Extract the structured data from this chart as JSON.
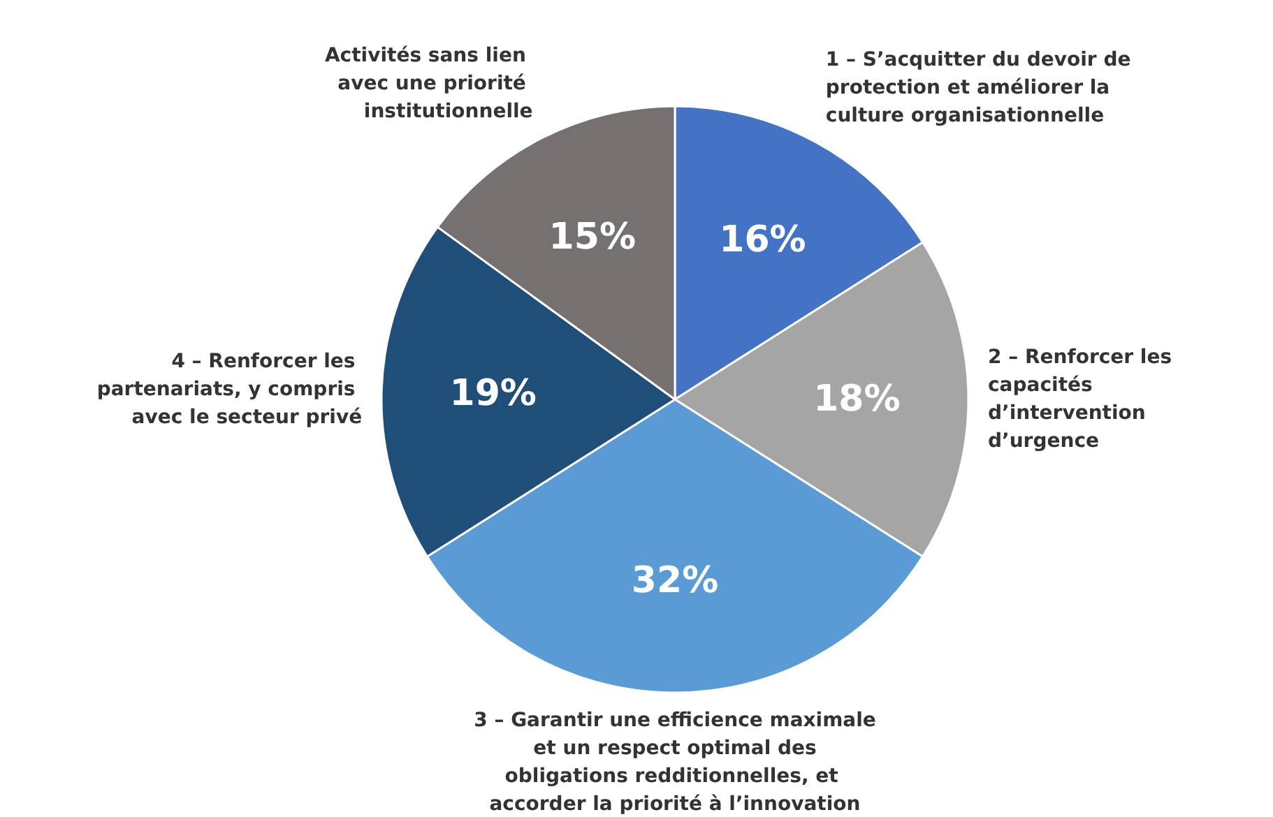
{
  "chart_data": {
    "type": "pie",
    "categories": [
      "1 – S’acquitter du devoir de protection et améliorer la culture organisationnelle",
      "2 – Renforcer les capacités d’intervention d’urgence",
      "3 – Garantir une efficience maximale et un respect optimal des obligations redditionnelles, et accorder la priorité à l’innovation",
      "4 – Renforcer les partenariats, y compris avec le secteur privé",
      "Activités sans lien avec une priorité institutionnelle"
    ],
    "values": [
      16,
      18,
      32,
      19,
      15
    ],
    "colors": [
      "#4472c4",
      "#a5a5a5",
      "#5b9bd5",
      "#1f4e79",
      "#767171"
    ],
    "value_labels": [
      "16%",
      "18%",
      "32%",
      "19%",
      "15%"
    ],
    "legend": false
  }
}
